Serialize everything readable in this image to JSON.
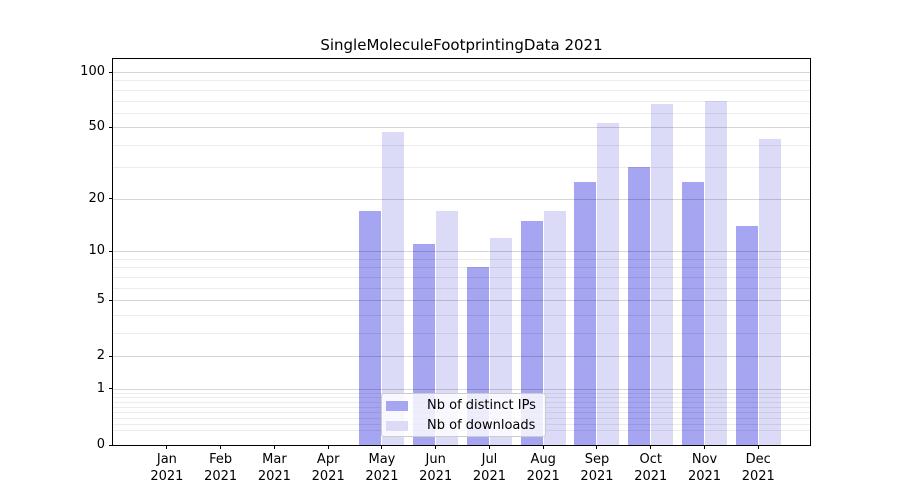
{
  "chart_data": {
    "type": "bar",
    "title": "SingleMoleculeFootprintingData 2021",
    "xlabel": "",
    "ylabel": "",
    "categories": [
      "Jan",
      "Feb",
      "Mar",
      "Apr",
      "May",
      "Jun",
      "Jul",
      "Aug",
      "Sep",
      "Oct",
      "Nov",
      "Dec"
    ],
    "year_label": "2021",
    "series": [
      {
        "key": "ips",
        "name": "Nb of distinct IPs",
        "color": "#a5a5f1",
        "values": [
          0,
          0,
          0,
          0,
          17,
          11,
          8,
          15,
          25,
          30,
          25,
          14
        ]
      },
      {
        "key": "downloads",
        "name": "Nb of downloads",
        "color": "#dbdbf8",
        "values": [
          0,
          0,
          0,
          0,
          47,
          17,
          12,
          17,
          53,
          67,
          70,
          43
        ]
      }
    ],
    "yscale": "log1p",
    "ylim": [
      0,
      118
    ],
    "y_major_ticks": [
      0,
      1,
      2,
      5,
      10,
      20,
      50,
      100
    ],
    "y_minor_ticks": [
      0.2,
      0.3,
      0.4,
      0.5,
      0.6,
      0.7,
      0.8,
      0.9,
      3,
      4,
      6,
      7,
      8,
      9,
      30,
      40,
      60,
      70,
      80,
      90
    ],
    "grid": "horizontal",
    "legend_position": "lower-center"
  }
}
